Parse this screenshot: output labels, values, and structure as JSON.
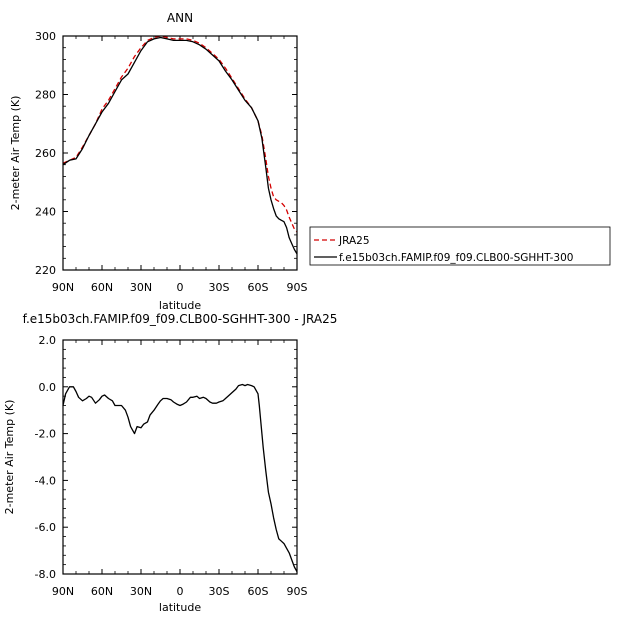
{
  "chart_data": [
    {
      "type": "line",
      "title": "ANN",
      "xlabel": "latitude",
      "ylabel": "2-meter Air Temp (K)",
      "xlim": [
        90,
        -90
      ],
      "ylim": [
        220,
        300
      ],
      "x_ticks": [
        90,
        60,
        30,
        0,
        -30,
        -60,
        -90
      ],
      "x_tick_labels": [
        "90N",
        "60N",
        "30N",
        "0",
        "30S",
        "60S",
        "90S"
      ],
      "y_ticks": [
        220,
        240,
        260,
        280,
        300
      ],
      "y_tick_labels": [
        "220",
        "240",
        "260",
        "280",
        "300"
      ],
      "legend_position": "right",
      "series": [
        {
          "name": "JRA25",
          "color": "#d40000",
          "dash": "dashed",
          "x": [
            90,
            85,
            80,
            75,
            70,
            65,
            60,
            55,
            50,
            45,
            40,
            35,
            30,
            25,
            20,
            15,
            10,
            5,
            0,
            -5,
            -10,
            -15,
            -20,
            -25,
            -30,
            -35,
            -40,
            -45,
            -50,
            -55,
            -60,
            -63,
            -66,
            -68,
            -70,
            -72,
            -74,
            -76,
            -78,
            -80,
            -82,
            -84,
            -86,
            -88,
            -90
          ],
          "y": [
            256.5,
            257.5,
            258.5,
            262,
            266,
            270,
            275,
            278,
            282,
            286,
            289,
            293,
            296,
            298.5,
            299.5,
            300,
            299.5,
            299,
            299,
            299,
            298.5,
            297.5,
            296,
            294,
            292,
            289,
            285.5,
            282,
            278.5,
            275.5,
            271,
            266,
            258,
            252,
            248,
            245,
            244,
            243.5,
            243,
            242,
            240.5,
            238,
            236,
            234,
            233
          ]
        },
        {
          "name": "f.e15b03ch.FAMIP.f09_f09.CLB00-SGHHT-300",
          "color": "#000000",
          "dash": "solid",
          "x": [
            90,
            85,
            80,
            75,
            70,
            65,
            60,
            55,
            50,
            45,
            40,
            35,
            30,
            25,
            20,
            15,
            10,
            5,
            0,
            -5,
            -10,
            -15,
            -20,
            -25,
            -30,
            -35,
            -40,
            -45,
            -50,
            -55,
            -60,
            -63,
            -66,
            -68,
            -70,
            -72,
            -74,
            -76,
            -78,
            -80,
            -82,
            -84,
            -86,
            -88,
            -90
          ],
          "y": [
            256,
            257.5,
            258,
            261.5,
            266,
            270,
            274,
            277,
            281,
            285,
            287,
            291,
            295,
            298,
            299,
            299.5,
            299,
            298.5,
            298.5,
            298.5,
            298,
            297,
            295.5,
            293.5,
            291.5,
            288,
            285,
            281.5,
            278,
            275.5,
            271,
            265,
            255,
            248,
            244,
            241,
            238.5,
            237.5,
            237,
            236.5,
            234.5,
            231,
            229,
            227,
            225.5
          ]
        }
      ]
    },
    {
      "type": "line",
      "title": "f.e15b03ch.FAMIP.f09_f09.CLB00-SGHHT-300 - JRA25",
      "xlabel": "latitude",
      "ylabel": "2-meter Air Temp (K)",
      "xlim": [
        90,
        -90
      ],
      "ylim": [
        -8,
        2
      ],
      "x_ticks": [
        90,
        60,
        30,
        0,
        -30,
        -60,
        -90
      ],
      "x_tick_labels": [
        "90N",
        "60N",
        "30N",
        "0",
        "30S",
        "60S",
        "90S"
      ],
      "y_ticks": [
        2,
        0,
        -2,
        -4,
        -6,
        -8
      ],
      "y_tick_labels": [
        "2.0",
        "0.0",
        "-2.0",
        "-4.0",
        "-6.0",
        "-8.0"
      ],
      "series": [
        {
          "color": "#000000",
          "dash": "solid",
          "x": [
            90,
            88,
            85,
            82,
            80,
            78,
            75,
            72,
            70,
            68,
            65,
            62,
            60,
            58,
            55,
            52,
            50,
            47,
            45,
            42,
            40,
            38,
            37,
            35,
            33,
            30,
            28,
            25,
            23,
            20,
            17,
            15,
            13,
            10,
            7,
            5,
            2,
            0,
            -2,
            -5,
            -8,
            -10,
            -13,
            -15,
            -18,
            -20,
            -23,
            -25,
            -28,
            -30,
            -33,
            -35,
            -38,
            -40,
            -43,
            -45,
            -48,
            -50,
            -52,
            -55,
            -57,
            -60,
            -61,
            -62,
            -63,
            -64,
            -66,
            -68,
            -70,
            -72,
            -74,
            -76,
            -78,
            -80,
            -82,
            -84,
            -86,
            -88,
            -90
          ],
          "y": [
            -0.8,
            -0.3,
            0.0,
            0.0,
            -0.2,
            -0.45,
            -0.6,
            -0.5,
            -0.4,
            -0.45,
            -0.7,
            -0.55,
            -0.4,
            -0.35,
            -0.5,
            -0.6,
            -0.8,
            -0.8,
            -0.8,
            -1.0,
            -1.3,
            -1.7,
            -1.8,
            -2.0,
            -1.7,
            -1.75,
            -1.6,
            -1.5,
            -1.2,
            -1.0,
            -0.75,
            -0.6,
            -0.5,
            -0.5,
            -0.55,
            -0.65,
            -0.75,
            -0.8,
            -0.75,
            -0.65,
            -0.45,
            -0.45,
            -0.4,
            -0.5,
            -0.45,
            -0.5,
            -0.65,
            -0.7,
            -0.7,
            -0.65,
            -0.6,
            -0.5,
            -0.35,
            -0.25,
            -0.1,
            0.05,
            0.1,
            0.05,
            0.1,
            0.05,
            0.0,
            -0.3,
            -0.8,
            -1.4,
            -2.0,
            -2.6,
            -3.6,
            -4.5,
            -5.0,
            -5.6,
            -6.1,
            -6.5,
            -6.6,
            -6.7,
            -6.9,
            -7.1,
            -7.4,
            -7.7,
            -7.9
          ]
        }
      ]
    }
  ]
}
